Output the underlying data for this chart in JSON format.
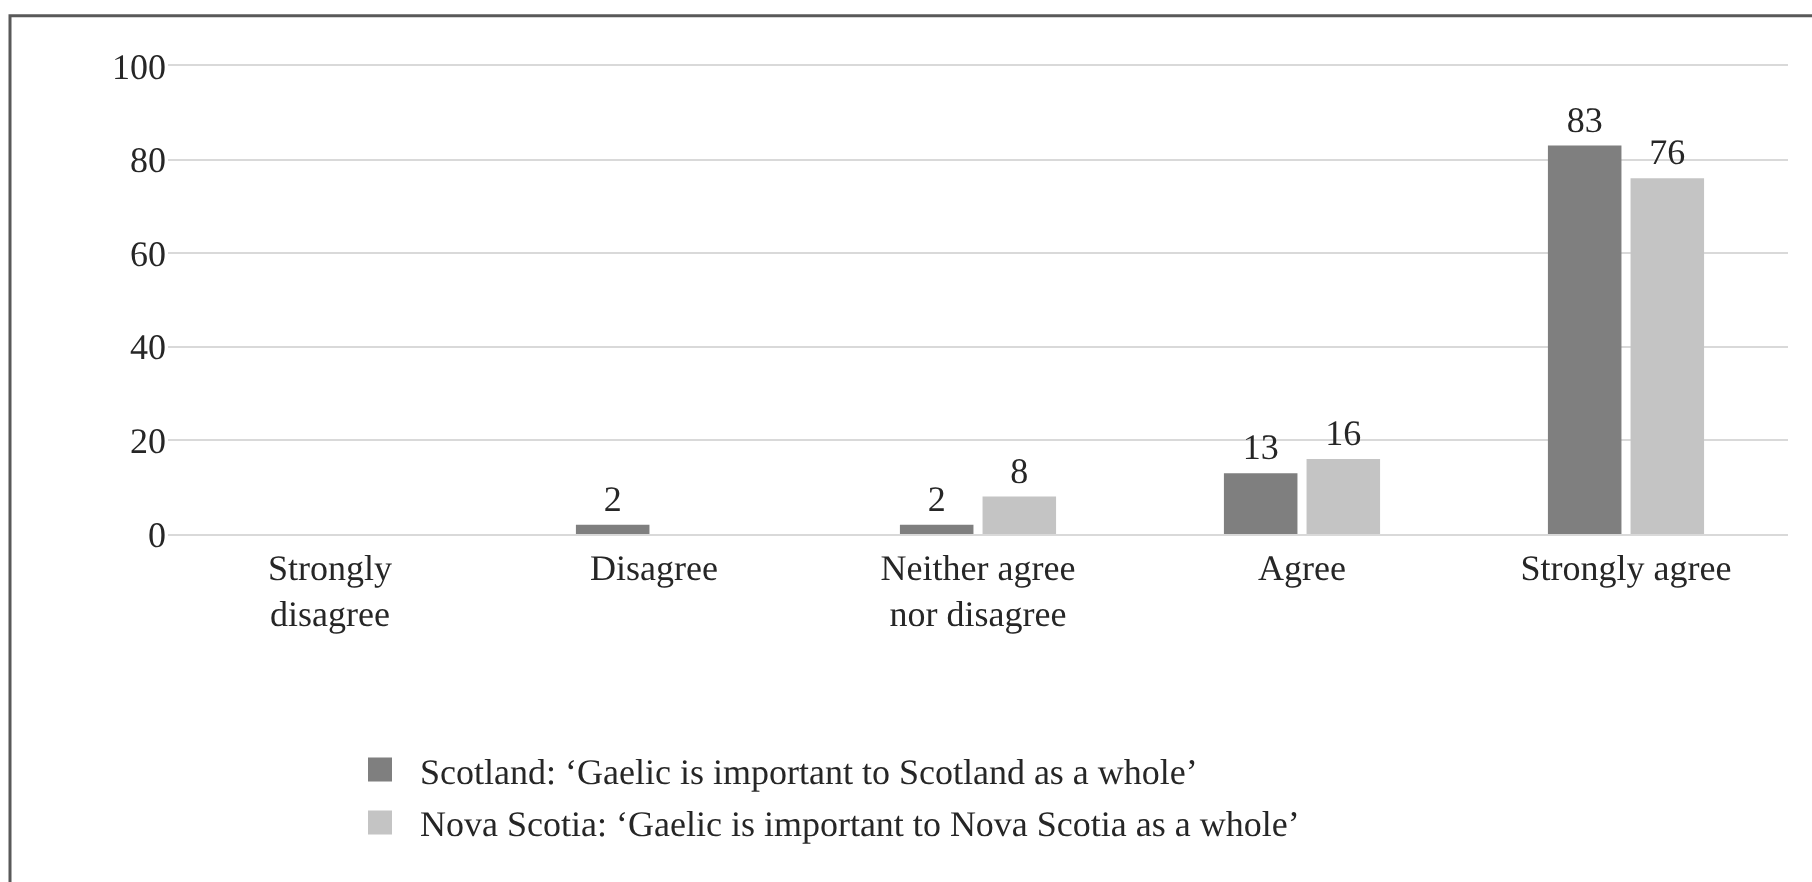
{
  "chart_data": {
    "type": "bar",
    "categories": [
      "Strongly disagree",
      "Disagree",
      "Neither agree nor disagree",
      "Agree",
      "Strongly agree"
    ],
    "series": [
      {
        "name": "Scotland: ‘Gaelic is important to Scotland as a whole’",
        "color": "#7f7f7f",
        "values": [
          0,
          2,
          2,
          13,
          83
        ],
        "value_labels": [
          null,
          "2",
          "2",
          "13",
          "83"
        ]
      },
      {
        "name": "Nova Scotia: ‘Gaelic is important to Nova Scotia as a whole’",
        "color": "#c4c4c4",
        "values": [
          0,
          0,
          8,
          16,
          76
        ],
        "value_labels": [
          null,
          null,
          "8",
          "16",
          "76"
        ]
      }
    ],
    "ylim": [
      0,
      100
    ],
    "yticks": [
      0,
      20,
      40,
      60,
      80,
      100
    ],
    "grid": "y",
    "legend": "bottom"
  }
}
